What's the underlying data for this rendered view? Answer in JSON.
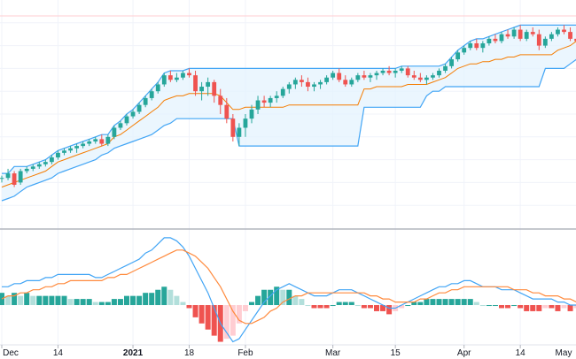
{
  "chart_data": {
    "type": "candlestick",
    "colors": {
      "up": "#26a69a",
      "down": "#ef5350",
      "channel_line": "#42a5f5",
      "channel_fill": "#e3f2fd",
      "midline": "#f57c00",
      "macd_line": "#42a5f5",
      "signal_line": "#ff8a3d",
      "hist_pos_strong": "#26a69a",
      "hist_pos_weak": "#b2dfdb",
      "hist_neg_strong": "#ef5350",
      "hist_neg_weak": "#ffcdd2",
      "grid": "#f0f3fa",
      "separator": "#b2b5be",
      "ref_line": "#ffcdd2"
    },
    "x_axis_labels": [
      {
        "text": "Dec",
        "index": 0
      },
      {
        "text": "14",
        "index": 9
      },
      {
        "text": "2021",
        "index": 21
      },
      {
        "text": "18",
        "index": 30
      },
      {
        "text": "Feb",
        "index": 39
      },
      {
        "text": "Mar",
        "index": 53
      },
      {
        "text": "15",
        "index": 63
      },
      {
        "text": "Apr",
        "index": 74
      },
      {
        "text": "14",
        "index": 83
      },
      {
        "text": "May",
        "index": 93
      }
    ],
    "bold_labels": [
      "2021"
    ],
    "price_panel": {
      "ylim": [
        0,
        100
      ],
      "grid": true,
      "reference_level": 93,
      "candles": [
        [
          22,
          23,
          20,
          22
        ],
        [
          22,
          26,
          21,
          24
        ],
        [
          24,
          25,
          18,
          19
        ],
        [
          20,
          26,
          19,
          25
        ],
        [
          25,
          27,
          24,
          26
        ],
        [
          26,
          28,
          25,
          27
        ],
        [
          27,
          29,
          26,
          28
        ],
        [
          28,
          30,
          27,
          29
        ],
        [
          29,
          32,
          28,
          31
        ],
        [
          31,
          34,
          30,
          33
        ],
        [
          33,
          35,
          32,
          34
        ],
        [
          34,
          36,
          33,
          35
        ],
        [
          35,
          37,
          33,
          36
        ],
        [
          36,
          38,
          35,
          37
        ],
        [
          37,
          39,
          36,
          38
        ],
        [
          38,
          40,
          37,
          39
        ],
        [
          39,
          41,
          36,
          37
        ],
        [
          37,
          41,
          36,
          40
        ],
        [
          40,
          45,
          39,
          44
        ],
        [
          44,
          47,
          43,
          46
        ],
        [
          46,
          50,
          45,
          49
        ],
        [
          49,
          52,
          48,
          51
        ],
        [
          51,
          55,
          50,
          54
        ],
        [
          54,
          58,
          53,
          57
        ],
        [
          57,
          61,
          56,
          60
        ],
        [
          60,
          64,
          59,
          63
        ],
        [
          63,
          68,
          62,
          67
        ],
        [
          67,
          69,
          64,
          65
        ],
        [
          65,
          68,
          64,
          66
        ],
        [
          66,
          69,
          65,
          68
        ],
        [
          68,
          70,
          66,
          67
        ],
        [
          67,
          69,
          58,
          60
        ],
        [
          60,
          64,
          56,
          62
        ],
        [
          62,
          66,
          58,
          64
        ],
        [
          64,
          65,
          55,
          58
        ],
        [
          58,
          61,
          50,
          54
        ],
        [
          54,
          57,
          46,
          48
        ],
        [
          48,
          50,
          38,
          40
        ],
        [
          40,
          46,
          36,
          44
        ],
        [
          44,
          50,
          40,
          48
        ],
        [
          48,
          54,
          46,
          52
        ],
        [
          52,
          58,
          50,
          56
        ],
        [
          56,
          58,
          53,
          55
        ],
        [
          55,
          58,
          53,
          57
        ],
        [
          57,
          60,
          55,
          58
        ],
        [
          58,
          62,
          57,
          61
        ],
        [
          61,
          64,
          59,
          63
        ],
        [
          63,
          66,
          61,
          65
        ],
        [
          65,
          67,
          62,
          64
        ],
        [
          64,
          66,
          60,
          62
        ],
        [
          62,
          64,
          60,
          63
        ],
        [
          63,
          65,
          61,
          64
        ],
        [
          64,
          67,
          63,
          66
        ],
        [
          66,
          69,
          65,
          68
        ],
        [
          68,
          70,
          64,
          65
        ],
        [
          65,
          67,
          62,
          63
        ],
        [
          63,
          66,
          62,
          65
        ],
        [
          65,
          68,
          64,
          67
        ],
        [
          67,
          69,
          65,
          66
        ],
        [
          66,
          68,
          64,
          67
        ],
        [
          67,
          69,
          65,
          68
        ],
        [
          68,
          70,
          67,
          69
        ],
        [
          69,
          71,
          67,
          68
        ],
        [
          68,
          70,
          66,
          69
        ],
        [
          69,
          71,
          68,
          70
        ],
        [
          70,
          71,
          66,
          67
        ],
        [
          67,
          69,
          65,
          66
        ],
        [
          66,
          68,
          64,
          65
        ],
        [
          65,
          67,
          63,
          66
        ],
        [
          66,
          68,
          65,
          67
        ],
        [
          67,
          70,
          66,
          69
        ],
        [
          69,
          72,
          68,
          71
        ],
        [
          71,
          75,
          70,
          74
        ],
        [
          74,
          78,
          73,
          77
        ],
        [
          77,
          80,
          76,
          79
        ],
        [
          79,
          82,
          78,
          81
        ],
        [
          81,
          83,
          78,
          79
        ],
        [
          79,
          82,
          77,
          81
        ],
        [
          81,
          84,
          80,
          83
        ],
        [
          83,
          85,
          81,
          82
        ],
        [
          82,
          86,
          81,
          85
        ],
        [
          85,
          87,
          83,
          84
        ],
        [
          84,
          88,
          83,
          87
        ],
        [
          87,
          89,
          82,
          83
        ],
        [
          83,
          87,
          82,
          86
        ],
        [
          86,
          88,
          84,
          85
        ],
        [
          85,
          87,
          78,
          80
        ],
        [
          80,
          84,
          79,
          83
        ],
        [
          83,
          86,
          82,
          85
        ],
        [
          85,
          88,
          84,
          87
        ],
        [
          87,
          89,
          85,
          86
        ],
        [
          86,
          88,
          82,
          83
        ],
        [
          83,
          86,
          80,
          82
        ]
      ],
      "channel_upper": [
        24,
        24,
        27,
        27,
        27,
        28,
        29,
        30,
        32,
        34,
        35,
        36,
        37,
        38,
        39,
        40,
        41,
        41,
        45,
        47,
        50,
        52,
        55,
        58,
        61,
        64,
        68,
        69,
        69,
        69,
        70,
        70,
        70,
        70,
        70,
        70,
        70,
        70,
        70,
        70,
        70,
        70,
        70,
        70,
        70,
        70,
        70,
        70,
        70,
        70,
        70,
        70,
        70,
        70,
        70,
        70,
        70,
        70,
        70,
        70,
        70,
        70,
        70,
        70,
        71,
        71,
        71,
        71,
        71,
        71,
        71,
        72,
        75,
        78,
        80,
        82,
        83,
        83,
        84,
        85,
        86,
        87,
        88,
        89,
        89,
        89,
        89,
        89,
        89,
        89,
        89,
        89,
        89
      ],
      "channel_lower": [
        12,
        13,
        14,
        16,
        18,
        19,
        20,
        21,
        22,
        24,
        25,
        26,
        27,
        28,
        29,
        30,
        32,
        33,
        35,
        36,
        37,
        38,
        39,
        40,
        41,
        43,
        45,
        46,
        48,
        48,
        48,
        48,
        48,
        48,
        48,
        48,
        48,
        48,
        36,
        36,
        36,
        36,
        36,
        36,
        36,
        36,
        36,
        36,
        36,
        36,
        36,
        36,
        36,
        36,
        36,
        36,
        36,
        36,
        53,
        53,
        53,
        53,
        53,
        53,
        53,
        53,
        53,
        53,
        58,
        60,
        60,
        62,
        62,
        62,
        62,
        62,
        62,
        62,
        62,
        62,
        62,
        62,
        62,
        62,
        62,
        62,
        62,
        70,
        70,
        70,
        70,
        72,
        74
      ],
      "midline": [
        18,
        19,
        20,
        21,
        22,
        23,
        24,
        25,
        27,
        29,
        30,
        31,
        32,
        33,
        34,
        35,
        36,
        37,
        40,
        41,
        43,
        45,
        47,
        49,
        51,
        53,
        56,
        57,
        58,
        58,
        59,
        59,
        59,
        59,
        59,
        58,
        55,
        52,
        52,
        53,
        53,
        53,
        53,
        53,
        53,
        53,
        54,
        54,
        54,
        54,
        54,
        54,
        54,
        54,
        54,
        54,
        54,
        54,
        61,
        61,
        62,
        62,
        62,
        62,
        62,
        63,
        63,
        63,
        63,
        64,
        65,
        66,
        68,
        70,
        71,
        72,
        72,
        73,
        73,
        74,
        74,
        75,
        75,
        76,
        76,
        76,
        76,
        76,
        76,
        78,
        79,
        80,
        82
      ]
    },
    "macd_panel": {
      "macd_line": [
        6,
        6,
        7,
        7,
        8,
        8,
        8,
        9,
        9,
        10,
        10,
        10,
        10,
        10,
        10,
        9,
        9,
        10,
        11,
        12,
        13,
        14,
        15,
        17,
        18,
        20,
        22,
        22,
        21,
        19,
        16,
        12,
        8,
        4,
        -1,
        -6,
        -9,
        -12,
        -11,
        -8,
        -5,
        -2,
        1,
        3,
        5,
        6,
        7,
        6,
        5,
        4,
        3,
        3,
        3,
        4,
        5,
        5,
        5,
        4,
        3,
        2,
        1,
        0,
        -1,
        -1,
        0,
        1,
        2,
        3,
        4,
        5,
        6,
        6,
        7,
        7,
        8,
        8,
        7,
        6,
        6,
        6,
        5,
        5,
        5,
        4,
        3,
        2,
        2,
        2,
        2,
        1,
        1,
        0,
        0
      ],
      "signal_line": [
        2,
        3,
        3,
        4,
        4,
        5,
        5,
        6,
        6,
        7,
        7,
        8,
        8,
        8,
        8,
        8,
        8,
        9,
        9,
        10,
        10,
        11,
        12,
        13,
        14,
        15,
        16,
        17,
        18,
        18,
        17,
        16,
        14,
        12,
        9,
        6,
        2,
        -2,
        -5,
        -6,
        -6,
        -5,
        -4,
        -2,
        -1,
        1,
        2,
        3,
        3,
        4,
        4,
        4,
        4,
        4,
        4,
        4,
        4,
        4,
        4,
        3,
        3,
        2,
        2,
        1,
        1,
        1,
        1,
        2,
        2,
        3,
        4,
        4,
        5,
        5,
        6,
        6,
        6,
        6,
        6,
        6,
        6,
        6,
        5,
        5,
        5,
        4,
        4,
        3,
        3,
        3,
        2,
        2,
        1
      ],
      "histogram": [
        4,
        3,
        4,
        3,
        4,
        3,
        3,
        3,
        3,
        3,
        3,
        2,
        2,
        2,
        2,
        1,
        1,
        1,
        2,
        2,
        3,
        3,
        3,
        4,
        4,
        5,
        6,
        5,
        3,
        1,
        -1,
        -4,
        -6,
        -8,
        -10,
        -12,
        -11,
        -10,
        -6,
        -2,
        1,
        3,
        5,
        5,
        6,
        5,
        5,
        3,
        2,
        0,
        -1,
        -1,
        -1,
        0,
        1,
        1,
        1,
        0,
        -1,
        -1,
        -2,
        -2,
        -3,
        -2,
        -1,
        0,
        1,
        1,
        2,
        2,
        2,
        2,
        2,
        2,
        2,
        2,
        1,
        0,
        0,
        0,
        -1,
        -1,
        0,
        -1,
        -2,
        -2,
        -2,
        -1,
        -1,
        -2,
        -1,
        -2,
        -1
      ]
    }
  }
}
